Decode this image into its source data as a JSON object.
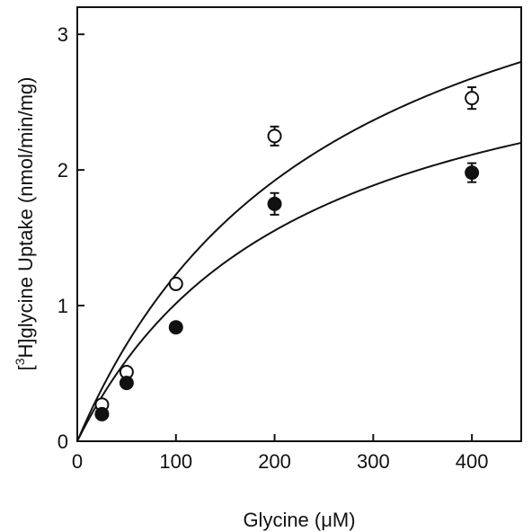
{
  "chart_data": {
    "type": "scatter",
    "title": "",
    "xlabel": "Glycine (μM)",
    "ylabel_prefix": "[",
    "ylabel_sup": "3",
    "ylabel_rest": "H]glycine Uptake (nmol/min/mg)",
    "xlim": [
      0,
      450
    ],
    "ylim": [
      0,
      3.2
    ],
    "xticks": [
      0,
      100,
      200,
      300,
      400
    ],
    "yticks": [
      0,
      1,
      2,
      3
    ],
    "xtick_labels": [
      "0",
      "100",
      "200",
      "300",
      "400"
    ],
    "ytick_labels": [
      "0",
      "1",
      "2",
      "3"
    ],
    "grid": false,
    "legend": "none",
    "series": [
      {
        "marker": "open-circle",
        "points": [
          {
            "x": 25,
            "y": 0.27,
            "err": 0
          },
          {
            "x": 50,
            "y": 0.51,
            "err": 0
          },
          {
            "x": 100,
            "y": 1.16,
            "err": 0
          },
          {
            "x": 200,
            "y": 2.25,
            "err": 0.07
          },
          {
            "x": 400,
            "y": 2.53,
            "err": 0.08
          }
        ],
        "fit": {
          "model": "michaelis-menten",
          "vmax": 4.4,
          "km": 258
        }
      },
      {
        "marker": "filled-circle",
        "points": [
          {
            "x": 25,
            "y": 0.2,
            "err": 0
          },
          {
            "x": 50,
            "y": 0.43,
            "err": 0
          },
          {
            "x": 100,
            "y": 0.84,
            "err": 0
          },
          {
            "x": 200,
            "y": 1.75,
            "err": 0.08
          },
          {
            "x": 400,
            "y": 1.98,
            "err": 0.07
          }
        ],
        "fit": {
          "model": "michaelis-menten",
          "vmax": 3.3,
          "km": 225
        }
      }
    ]
  }
}
